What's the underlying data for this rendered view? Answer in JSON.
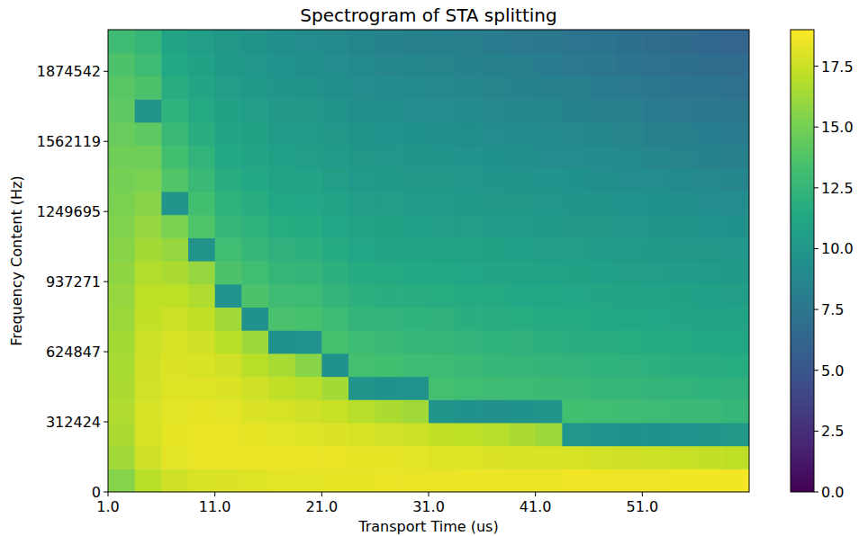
{
  "chart_data": {
    "type": "heatmap",
    "title": "Spectrogram of STA splitting",
    "x_label": "Transport Time (us)",
    "y_label": "Frequency Content (Hz)",
    "xlim": [
      1,
      61
    ],
    "ylim": [
      0,
      2060000
    ],
    "xticks": [
      {
        "value": 1,
        "label": "1.0"
      },
      {
        "value": 11,
        "label": "11.0"
      },
      {
        "value": 21,
        "label": "21.0"
      },
      {
        "value": 31,
        "label": "31.0"
      },
      {
        "value": 41,
        "label": "41.0"
      },
      {
        "value": 51,
        "label": "51.0"
      }
    ],
    "yticks": [
      0,
      312424,
      624847,
      937271,
      1249695,
      1562119,
      1874542
    ],
    "xbins": [
      1,
      3.5,
      6,
      8.5,
      11,
      13.5,
      16,
      18.5,
      21,
      23.5,
      26,
      28.5,
      31,
      33.5,
      36,
      38.5,
      41,
      43.5,
      46,
      48.5,
      51,
      53.5,
      56,
      58.5,
      61
    ],
    "ybins": [
      0,
      103000,
      206000,
      309000,
      412000,
      515000,
      618000,
      721000,
      824000,
      927000,
      1030000,
      1133000,
      1236000,
      1339000,
      1442000,
      1545000,
      1648000,
      1751000,
      1854000,
      1957000,
      2060000
    ],
    "values": [
      [
        15.5,
        16.3,
        16.6,
        16.7,
        16.6,
        16.5,
        16.4,
        16.2,
        16.0,
        15.8,
        15.6,
        15.4,
        15.2,
        15.0,
        14.8,
        14.6,
        14.3,
        14.0,
        13.6,
        13.0
      ],
      [
        17.0,
        17.6,
        17.8,
        17.8,
        17.7,
        17.6,
        17.5,
        17.3,
        17.1,
        16.8,
        16.4,
        16.0,
        15.6,
        15.2,
        14.8,
        14.2,
        9.8,
        13.6,
        13.0,
        12.5
      ],
      [
        17.6,
        18.2,
        18.3,
        18.2,
        18.1,
        18.0,
        17.8,
        17.5,
        17.1,
        16.6,
        16.0,
        15.2,
        9.8,
        13.8,
        13.2,
        12.7,
        12.2,
        11.8,
        11.4,
        11.0
      ],
      [
        17.9,
        18.4,
        18.4,
        18.3,
        18.1,
        17.9,
        17.6,
        17.2,
        16.7,
        16.0,
        9.7,
        13.7,
        13.2,
        12.7,
        12.3,
        11.9,
        11.5,
        11.1,
        10.8,
        10.5
      ],
      [
        18.0,
        18.5,
        18.4,
        18.2,
        18.0,
        17.6,
        17.0,
        16.3,
        9.6,
        13.6,
        13.1,
        12.6,
        12.2,
        11.8,
        11.4,
        11.1,
        10.8,
        10.5,
        10.2,
        10.0
      ],
      [
        18.1,
        18.5,
        18.3,
        18.0,
        17.6,
        17.0,
        16.2,
        9.5,
        13.6,
        13.1,
        12.6,
        12.2,
        11.8,
        11.4,
        11.1,
        10.8,
        10.5,
        10.2,
        9.9,
        9.7
      ],
      [
        18.2,
        18.5,
        18.2,
        17.8,
        17.2,
        16.5,
        9.5,
        13.5,
        13.0,
        12.5,
        12.1,
        11.7,
        11.3,
        11.0,
        10.7,
        10.4,
        10.1,
        9.8,
        9.6,
        9.4
      ],
      [
        18.2,
        18.4,
        18.1,
        17.6,
        16.9,
        15.6,
        9.6,
        13.4,
        12.9,
        12.4,
        12.0,
        11.6,
        11.2,
        10.9,
        10.6,
        10.3,
        10.0,
        9.7,
        9.4,
        9.2
      ],
      [
        18.3,
        18.4,
        18.0,
        17.4,
        16.4,
        9.5,
        13.4,
        12.9,
        12.4,
        12.0,
        11.6,
        11.2,
        10.9,
        10.6,
        10.3,
        10.0,
        9.7,
        9.4,
        9.1,
        8.9
      ],
      [
        18.3,
        18.3,
        17.8,
        16.9,
        9.8,
        13.3,
        12.9,
        12.4,
        12.0,
        11.6,
        11.2,
        10.9,
        10.6,
        10.3,
        10.0,
        9.7,
        9.4,
        9.1,
        8.9,
        8.6
      ],
      [
        18.4,
        18.3,
        17.7,
        16.6,
        9.5,
        13.2,
        12.7,
        12.3,
        11.9,
        11.5,
        11.1,
        10.8,
        10.5,
        10.2,
        9.9,
        9.6,
        9.3,
        9.0,
        8.7,
        8.4
      ],
      [
        18.4,
        18.2,
        17.5,
        16.3,
        9.6,
        13.0,
        12.6,
        12.2,
        11.8,
        11.4,
        11.0,
        10.7,
        10.4,
        10.1,
        9.8,
        9.5,
        9.2,
        8.9,
        8.6,
        8.3
      ],
      [
        18.4,
        18.1,
        17.3,
        9.8,
        13.3,
        12.9,
        12.5,
        12.1,
        11.7,
        11.3,
        11.0,
        10.6,
        10.3,
        10.0,
        9.7,
        9.4,
        9.1,
        8.8,
        8.5,
        8.2
      ],
      [
        18.5,
        18.1,
        17.1,
        9.5,
        13.1,
        12.7,
        12.3,
        11.9,
        11.6,
        11.2,
        10.9,
        10.5,
        10.2,
        9.9,
        9.6,
        9.3,
        9.0,
        8.7,
        8.4,
        8.1
      ],
      [
        18.5,
        18.0,
        16.9,
        9.4,
        13.0,
        12.6,
        12.2,
        11.8,
        11.5,
        11.1,
        10.8,
        10.4,
        10.1,
        9.8,
        9.5,
        9.2,
        8.8,
        8.5,
        8.2,
        7.9
      ],
      [
        18.5,
        17.9,
        16.6,
        9.5,
        12.9,
        12.5,
        12.1,
        11.7,
        11.4,
        11.0,
        10.7,
        10.3,
        10.0,
        9.7,
        9.4,
        9.0,
        8.7,
        8.4,
        8.1,
        7.7
      ],
      [
        18.5,
        17.9,
        16.2,
        9.7,
        12.8,
        12.4,
        12.0,
        11.6,
        11.3,
        10.9,
        10.6,
        10.2,
        9.9,
        9.6,
        9.2,
        8.9,
        8.6,
        8.2,
        7.9,
        7.5
      ],
      [
        18.6,
        17.8,
        9.9,
        13.2,
        12.7,
        12.3,
        11.9,
        11.5,
        11.2,
        10.8,
        10.5,
        10.1,
        9.8,
        9.5,
        9.1,
        8.8,
        8.4,
        8.1,
        7.7,
        7.4
      ],
      [
        18.6,
        17.7,
        9.6,
        13.1,
        12.6,
        12.2,
        11.8,
        11.4,
        11.1,
        10.7,
        10.4,
        10.0,
        9.7,
        9.3,
        9.0,
        8.6,
        8.3,
        7.9,
        7.5,
        7.2
      ],
      [
        18.6,
        17.6,
        9.5,
        13.0,
        12.5,
        12.1,
        11.7,
        11.3,
        11.0,
        10.6,
        10.3,
        9.9,
        9.6,
        9.2,
        8.9,
        8.5,
        8.1,
        7.7,
        7.3,
        7.0
      ],
      [
        18.6,
        17.5,
        9.5,
        12.9,
        12.4,
        12.0,
        11.6,
        11.2,
        10.9,
        10.5,
        10.2,
        9.8,
        9.5,
        9.1,
        8.7,
        8.3,
        7.9,
        7.5,
        7.1,
        6.8
      ],
      [
        18.7,
        17.4,
        9.6,
        12.8,
        12.3,
        11.9,
        11.5,
        11.1,
        10.8,
        10.4,
        10.1,
        9.7,
        9.3,
        8.9,
        8.5,
        8.1,
        7.7,
        7.3,
        6.9,
        6.6
      ],
      [
        18.7,
        17.3,
        9.7,
        12.7,
        12.2,
        11.8,
        11.4,
        11.0,
        10.7,
        10.3,
        10.0,
        9.6,
        9.2,
        8.8,
        8.4,
        8.0,
        7.6,
        7.2,
        6.8,
        6.4
      ],
      [
        18.7,
        17.1,
        10.0,
        12.6,
        12.1,
        11.7,
        11.3,
        10.9,
        10.6,
        10.2,
        9.9,
        9.5,
        9.1,
        8.7,
        8.3,
        7.9,
        7.5,
        7.1,
        6.7,
        6.2
      ]
    ],
    "colorbar": {
      "range": [
        0,
        19
      ],
      "ticks": [
        {
          "value": 0,
          "label": "0.0"
        },
        2.5,
        {
          "value": 5,
          "label": "5.0"
        },
        7.5,
        {
          "value": 10,
          "label": "10.0"
        },
        12.5,
        {
          "value": 15,
          "label": "15.0"
        },
        17.5
      ]
    },
    "grid": false
  }
}
